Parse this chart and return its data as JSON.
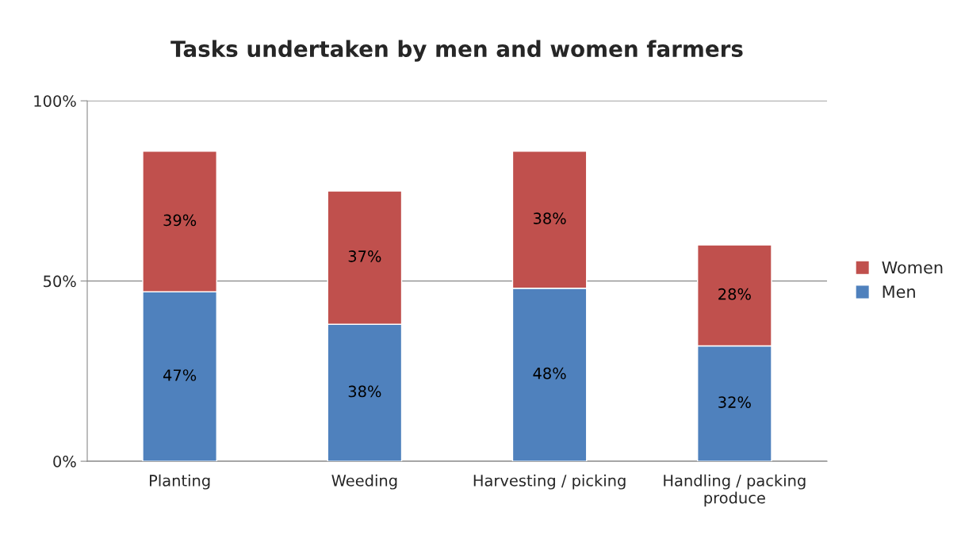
{
  "chart_data": {
    "type": "bar",
    "title": "Tasks undertaken by men and women farmers",
    "categories": [
      "Planting",
      "Weeding",
      "Harvesting / picking",
      "Handling / packing\nproduce"
    ],
    "stacked": true,
    "series": [
      {
        "name": "Men",
        "color": "#4f81bd",
        "values": [
          47,
          38,
          48,
          32
        ],
        "value_labels": [
          "47%",
          "38%",
          "48%",
          "32%"
        ]
      },
      {
        "name": "Women",
        "color": "#c0504d",
        "values": [
          39,
          37,
          38,
          28
        ],
        "value_labels": [
          "39%",
          "37%",
          "38%",
          "28%"
        ]
      }
    ],
    "ylim": [
      0,
      100
    ],
    "yticks": [
      {
        "value": 0,
        "label": "0%"
      },
      {
        "value": 50,
        "label": "50%"
      },
      {
        "value": 100,
        "label": "100%"
      }
    ],
    "grid": "y",
    "legend": "right"
  }
}
